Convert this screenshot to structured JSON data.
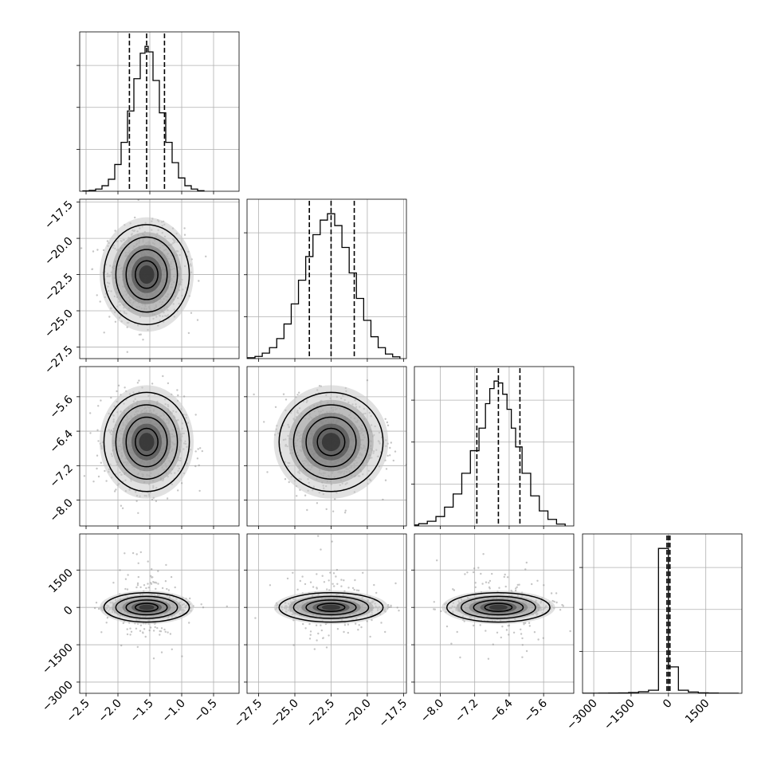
{
  "chart_data": {
    "type": "corner",
    "parameters": [
      {
        "index": 0,
        "range": [
          -2.6,
          -0.1
        ],
        "ticks": [
          -2.5,
          -2.0,
          -1.5,
          -1.0,
          -0.5
        ],
        "tick_labels": [
          "−2.5",
          "−2.0",
          "−1.5",
          "−1.0",
          "−0.5"
        ],
        "quantiles": [
          -1.82,
          -1.55,
          -1.27
        ],
        "median": -1.55,
        "sigma": 0.28
      },
      {
        "index": 1,
        "range": [
          -28.3,
          -17.3
        ],
        "ticks": [
          -27.5,
          -25.0,
          -22.5,
          -20.0,
          -17.5
        ],
        "tick_labels": [
          "−27.5",
          "−25.0",
          "−22.5",
          "−20.0",
          "−17.5"
        ],
        "quantiles": [
          -24.0,
          -22.5,
          -20.9
        ],
        "median": -22.5,
        "sigma": 1.5
      },
      {
        "index": 2,
        "range": [
          -8.6,
          -4.9
        ],
        "ticks": [
          -8.0,
          -7.2,
          -6.4,
          -5.6
        ],
        "tick_labels": [
          "−8.0",
          "−7.2",
          "−6.4",
          "−5.6"
        ],
        "quantiles": [
          -7.15,
          -6.65,
          -6.15
        ],
        "median": -6.65,
        "sigma": 0.5
      },
      {
        "index": 3,
        "range": [
          -3450,
          2950
        ],
        "ticks": [
          -3000,
          -1500,
          0,
          1500
        ],
        "tick_labels": [
          "−3000",
          "−1500",
          "0",
          "1500"
        ],
        "quantiles": [
          -60,
          0,
          60
        ],
        "median": 0,
        "sigma": 160
      }
    ],
    "histograms": [
      {
        "param": 0,
        "bins": [
          -2.5,
          -2.4,
          -2.3,
          -2.2,
          -2.1,
          -2.0,
          -1.9,
          -1.8,
          -1.7,
          -1.6,
          -1.55,
          -1.5,
          -1.4,
          -1.3,
          -1.2,
          -1.1,
          -1.0,
          -0.9,
          -0.8,
          -0.7
        ],
        "counts": [
          2,
          5,
          12,
          30,
          65,
          145,
          265,
          435,
          610,
          748,
          785,
          755,
          600,
          425,
          265,
          155,
          72,
          30,
          12,
          3
        ]
      },
      {
        "param": 1,
        "bins": [
          -28.0,
          -27.5,
          -27.0,
          -26.5,
          -26.0,
          -25.5,
          -25.0,
          -24.5,
          -24.0,
          -23.5,
          -23.0,
          -22.5,
          -22.0,
          -21.5,
          -21.0,
          -20.5,
          -20.0,
          -19.5,
          -19.0,
          -18.5,
          -18.0
        ],
        "counts": [
          5,
          12,
          30,
          60,
          110,
          190,
          300,
          430,
          560,
          680,
          760,
          795,
          730,
          610,
          470,
          330,
          210,
          120,
          60,
          25,
          10
        ]
      },
      {
        "param": 2,
        "bins": [
          -8.6,
          -8.4,
          -8.2,
          -8.0,
          -7.8,
          -7.6,
          -7.4,
          -7.2,
          -7.0,
          -6.9,
          -6.8,
          -6.7,
          -6.6,
          -6.5,
          -6.4,
          -6.3,
          -6.2,
          -6.0,
          -5.8,
          -5.6,
          -5.4,
          -5.2
        ],
        "counts": [
          5,
          12,
          25,
          50,
          100,
          170,
          280,
          400,
          520,
          650,
          730,
          770,
          760,
          700,
          620,
          520,
          420,
          280,
          160,
          80,
          35,
          10
        ]
      },
      {
        "param": 3,
        "bins": [
          -3400,
          -3000,
          -2600,
          -2200,
          -1800,
          -1400,
          -1000,
          -600,
          -200,
          200,
          600,
          1000,
          1400,
          1800,
          2200,
          2600
        ],
        "counts": [
          1,
          2,
          3,
          5,
          8,
          15,
          30,
          60,
          2800,
          510,
          60,
          25,
          10,
          5,
          2,
          1
        ]
      }
    ],
    "pairs": [
      {
        "x": 0,
        "y": 1
      },
      {
        "x": 0,
        "y": 2
      },
      {
        "x": 1,
        "y": 2
      },
      {
        "x": 0,
        "y": 3
      },
      {
        "x": 1,
        "y": 3
      },
      {
        "x": 2,
        "y": 3
      }
    ],
    "grid": true,
    "colors": {
      "ink": "#000000",
      "grid": "#b0b0b0",
      "scatter": "#8c8c8c"
    }
  }
}
